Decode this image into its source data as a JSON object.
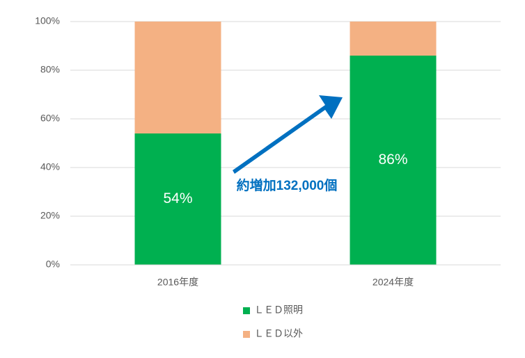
{
  "chart_data": {
    "type": "stacked_bar",
    "categories": [
      "2016年度",
      "2024年度"
    ],
    "series": [
      {
        "name": "ＬＥＤ照明",
        "color": "#00b050",
        "values": [
          54,
          86
        ],
        "value_labels": [
          "54%",
          "86%"
        ]
      },
      {
        "name": "ＬＥＤ以外",
        "color": "#f4b183",
        "values": [
          46,
          14
        ]
      }
    ],
    "ylim": [
      0,
      100
    ],
    "yticks": [
      {
        "value": 0,
        "label": "0%"
      },
      {
        "value": 20,
        "label": "20%"
      },
      {
        "value": 40,
        "label": "40%"
      },
      {
        "value": 60,
        "label": "60%"
      },
      {
        "value": 80,
        "label": "80%"
      },
      {
        "value": 100,
        "label": "100%"
      }
    ],
    "grid": true,
    "legend": "bottom",
    "annotation": "約増加132,000個"
  }
}
